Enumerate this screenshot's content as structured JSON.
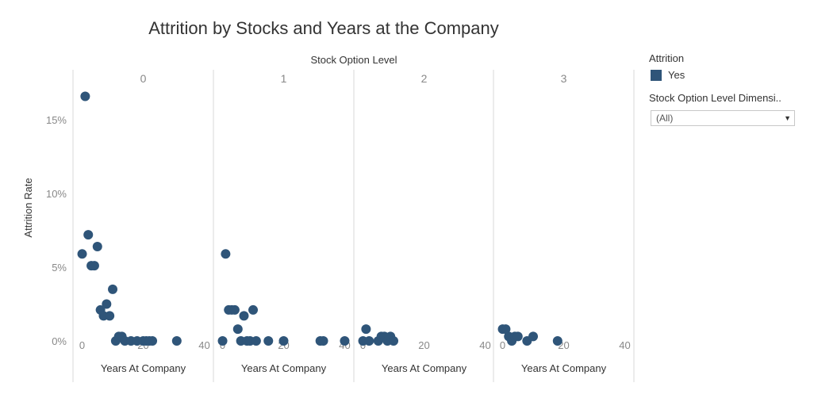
{
  "chart_data": {
    "type": "scatter",
    "title": "Attrition by Stocks and Years at the Company",
    "column_header": "Stock Option Level",
    "panels": [
      "0",
      "1",
      "2",
      "3"
    ],
    "xlabel": "Years At Company",
    "ylabel": "Attrition Rate",
    "xlim": [
      -3,
      43
    ],
    "ylim": [
      -2.8,
      18.4
    ],
    "x_ticks": [
      0,
      20,
      40
    ],
    "x_tick_labels": [
      "0",
      "20",
      "40"
    ],
    "y_ticks": [
      0,
      5,
      10,
      15
    ],
    "y_tick_labels": [
      "0%",
      "5%",
      "10%",
      "15%"
    ],
    "grid": false,
    "series": [
      {
        "name": "Yes",
        "color": "#2f5579",
        "panel_points": [
          [
            [
              0,
              5.9
            ],
            [
              1,
              16.6
            ],
            [
              2,
              7.2
            ],
            [
              3,
              5.1
            ],
            [
              4,
              5.1
            ],
            [
              5,
              6.4
            ],
            [
              6,
              2.1
            ],
            [
              7,
              1.7
            ],
            [
              8,
              2.5
            ],
            [
              9,
              1.7
            ],
            [
              10,
              3.5
            ],
            [
              11,
              0.0
            ],
            [
              12,
              0.3
            ],
            [
              13,
              0.3
            ],
            [
              14,
              0.0
            ],
            [
              16,
              0.0
            ],
            [
              18,
              0.0
            ],
            [
              20,
              0.0
            ],
            [
              21,
              0.0
            ],
            [
              22,
              0.0
            ],
            [
              23,
              0.0
            ],
            [
              31,
              0.0
            ]
          ],
          [
            [
              0,
              0.0
            ],
            [
              1,
              5.9
            ],
            [
              2,
              2.1
            ],
            [
              3,
              2.1
            ],
            [
              4,
              2.1
            ],
            [
              5,
              0.8
            ],
            [
              6,
              0.0
            ],
            [
              7,
              1.7
            ],
            [
              8,
              0.0
            ],
            [
              9,
              0.0
            ],
            [
              10,
              2.1
            ],
            [
              11,
              0.0
            ],
            [
              15,
              0.0
            ],
            [
              20,
              0.0
            ],
            [
              32,
              0.0
            ],
            [
              33,
              0.0
            ],
            [
              40,
              0.0
            ]
          ],
          [
            [
              0,
              0.0
            ],
            [
              1,
              0.8
            ],
            [
              2,
              0.0
            ],
            [
              5,
              0.0
            ],
            [
              6,
              0.3
            ],
            [
              7,
              0.3
            ],
            [
              8,
              0.0
            ],
            [
              9,
              0.3
            ],
            [
              10,
              0.0
            ]
          ],
          [
            [
              0,
              0.8
            ],
            [
              1,
              0.8
            ],
            [
              2,
              0.3
            ],
            [
              3,
              0.0
            ],
            [
              4,
              0.3
            ],
            [
              5,
              0.3
            ],
            [
              8,
              0.0
            ],
            [
              10,
              0.3
            ],
            [
              18,
              0.0
            ]
          ]
        ]
      }
    ],
    "legend_position": "right"
  },
  "legend": {
    "title": "Attrition",
    "items": [
      {
        "label": "Yes",
        "color": "#2f5579"
      }
    ]
  },
  "filter": {
    "title": "Stock Option Level Dimensi..",
    "value": "(All)"
  }
}
